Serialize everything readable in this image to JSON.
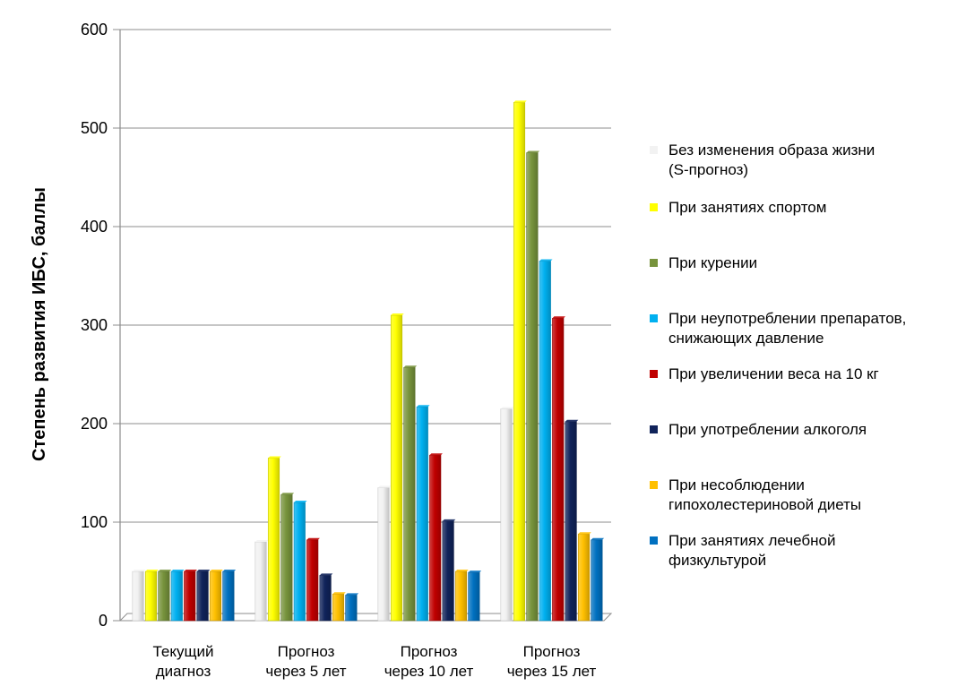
{
  "chart_data": {
    "type": "bar",
    "title": "",
    "ylabel": "Степень развития ИБС, баллы",
    "xlabel": "",
    "ylim": [
      0,
      600
    ],
    "yticks": [
      0,
      100,
      200,
      300,
      400,
      500,
      600
    ],
    "grid": true,
    "legend_position": "right",
    "categories": [
      [
        "Текущий",
        "диагноз"
      ],
      [
        "Прогноз",
        "через 5 лет"
      ],
      [
        "Прогноз",
        "через 10 лет"
      ],
      [
        "Прогноз",
        "через 15 лет"
      ]
    ],
    "series": [
      {
        "name": "Без изменения образа жизни (S-прогноз)",
        "color": "#f2f2f2",
        "values": [
          50,
          80,
          135,
          215
        ]
      },
      {
        "name": "При занятиях спортом",
        "color": "#ffff00",
        "values": [
          50,
          165,
          310,
          526
        ]
      },
      {
        "name": "При курении",
        "color": "#77933c",
        "values": [
          50,
          128,
          257,
          475
        ]
      },
      {
        "name": "При неупотреблении препаратов, снижающих давление",
        "color": "#00b0f0",
        "values": [
          50,
          120,
          217,
          365
        ]
      },
      {
        "name": "При увеличении веса на 10 кг",
        "color": "#c00000",
        "values": [
          50,
          82,
          168,
          307
        ]
      },
      {
        "name": "При употреблении алкоголя",
        "color": "#10235a",
        "values": [
          50,
          46,
          101,
          202
        ]
      },
      {
        "name": "При несоблюдении гипохолестериновой диеты",
        "color": "#ffc000",
        "values": [
          50,
          27,
          50,
          88
        ]
      },
      {
        "name": "При занятиях лечебной физкультурой",
        "color": "#0070c0",
        "values": [
          50,
          26,
          49,
          82
        ]
      }
    ]
  }
}
